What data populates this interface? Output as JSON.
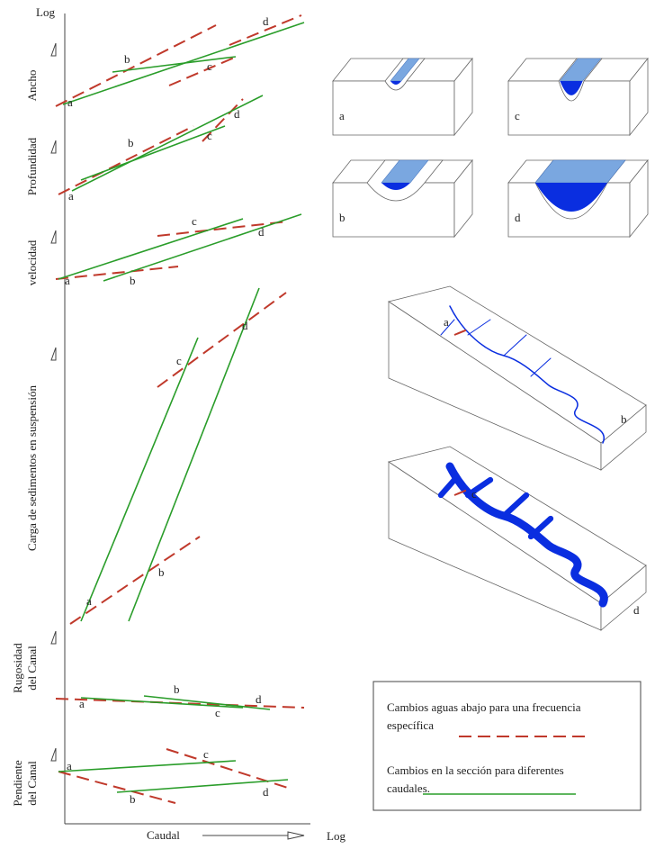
{
  "axes": {
    "y_label": "Log",
    "x_label": "Caudal",
    "x_scale_label": "Log"
  },
  "panels": [
    {
      "label": [
        "Ancho"
      ],
      "points": [
        "a",
        "b",
        "c",
        "d"
      ]
    },
    {
      "label": [
        "Profundidad"
      ],
      "points": [
        "a",
        "b",
        "c",
        "d"
      ]
    },
    {
      "label": [
        "velocidad"
      ],
      "points": [
        "a",
        "b",
        "c",
        "d"
      ]
    },
    {
      "label": [
        "Carga de sedimentos en suspensión"
      ],
      "points": [
        "a",
        "b",
        "c",
        "d"
      ]
    },
    {
      "label": [
        "Rugosidad",
        "del Canal"
      ],
      "points": [
        "a",
        "b",
        "c",
        "d"
      ]
    },
    {
      "label": [
        "Pendiente",
        "del Canal"
      ],
      "points": [
        "a",
        "b",
        "c",
        "d"
      ]
    }
  ],
  "cross_sections": [
    "a",
    "c",
    "b",
    "d"
  ],
  "maps": [
    {
      "points": [
        "a",
        "b"
      ]
    },
    {
      "points": [
        "c",
        "d"
      ]
    }
  ],
  "legend": [
    {
      "lines": [
        "Cambios aguas abajo para una frecuencia",
        "específica"
      ]
    },
    {
      "lines": [
        "Cambios en la sección para diferentes",
        "caudales."
      ]
    }
  ]
}
